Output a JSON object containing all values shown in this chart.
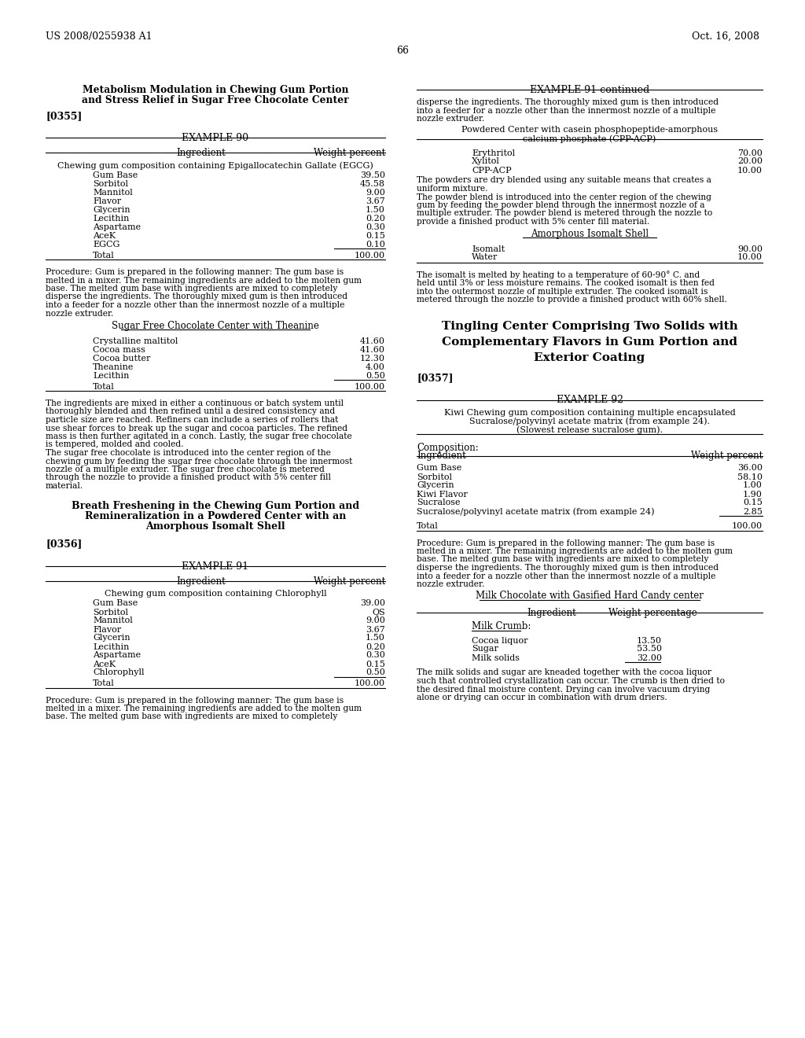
{
  "page_number": "66",
  "patent_left": "US 2008/0255938 A1",
  "patent_right": "Oct. 16, 2008",
  "background_color": "#ffffff",
  "left_column": {
    "section_title_line1": "Metabolism Modulation in Chewing Gum Portion",
    "section_title_line2": "and Stress Relief in Sugar Free Chocolate Center",
    "paragraph_tag": "[0355]",
    "example90": {
      "title": "EXAMPLE 90",
      "col1": "Ingredient",
      "col2": "Weight percent",
      "subtitle": "Chewing gum composition containing Epigallocatechin Gallate (EGCG)",
      "items": [
        [
          "Gum Base",
          "39.50"
        ],
        [
          "Sorbitol",
          "45.58"
        ],
        [
          "Mannitol",
          "9.00"
        ],
        [
          "Flavor",
          "3.67"
        ],
        [
          "Glycerin",
          "1.50"
        ],
        [
          "Lecithin",
          "0.20"
        ],
        [
          "Aspartame",
          "0.30"
        ],
        [
          "AceK",
          "0.15"
        ],
        [
          "EGCG",
          "0.10"
        ]
      ],
      "total": [
        "Total",
        "100.00"
      ],
      "procedure_lines": [
        "Procedure: Gum is prepared in the following manner: The gum base is",
        "melted in a mixer. The remaining ingredients are added to the molten gum",
        "base. The melted gum base with ingredients are mixed to completely",
        "disperse the ingredients. The thoroughly mixed gum is then introduced",
        "into a feeder for a nozzle other than the innermost nozzle of a multiple",
        "nozzle extruder."
      ],
      "subtitle2_line1": "Sugar Free Chocolate Center with Theanine",
      "items2": [
        [
          "Crystalline maltitol",
          "41.60"
        ],
        [
          "Cocoa mass",
          "41.60"
        ],
        [
          "Cocoa butter",
          "12.30"
        ],
        [
          "Theanine",
          "4.00"
        ],
        [
          "Lecithin",
          "0.50"
        ]
      ],
      "total2": [
        "Total",
        "100.00"
      ],
      "procedure2_lines": [
        "The ingredients are mixed in either a continuous or batch system until",
        "thoroughly blended and then refined until a desired consistency and",
        "particle size are reached. Refiners can include a series of rollers that",
        "use shear forces to break up the sugar and cocoa particles. The refined",
        "mass is then further agitated in a conch. Lastly, the sugar free chocolate",
        "is tempered, molded and cooled.",
        "The sugar free chocolate is introduced into the center region of the",
        "chewing gum by feeding the sugar free chocolate through the innermost",
        "nozzle of a multiple extruder. The sugar free chocolate is metered",
        "through the nozzle to provide a finished product with 5% center fill",
        "material."
      ]
    },
    "section_title2_line1": "Breath Freshening in the Chewing Gum Portion and",
    "section_title2_line2": "Remineralization in a Powdered Center with an",
    "section_title2_line3": "Amorphous Isomalt Shell",
    "paragraph_tag2": "[0356]",
    "example91": {
      "title": "EXAMPLE 91",
      "col1": "Ingredient",
      "col2": "Weight percent",
      "subtitle": "Chewing gum composition containing Chlorophyll",
      "items": [
        [
          "Gum Base",
          "39.00"
        ],
        [
          "Sorbitol",
          "QS"
        ],
        [
          "Mannitol",
          "9.00"
        ],
        [
          "Flavor",
          "3.67"
        ],
        [
          "Glycerin",
          "1.50"
        ],
        [
          "Lecithin",
          "0.20"
        ],
        [
          "Aspartame",
          "0.30"
        ],
        [
          "AceK",
          "0.15"
        ],
        [
          "Chlorophyll",
          "0.50"
        ]
      ],
      "total": [
        "Total",
        "100.00"
      ],
      "procedure_lines": [
        "Procedure: Gum is prepared in the following manner: The gum base is",
        "melted in a mixer. The remaining ingredients are added to the molten gum",
        "base. The melted gum base with ingredients are mixed to completely"
      ]
    }
  },
  "right_column": {
    "example91_continued": {
      "title": "EXAMPLE 91-continued",
      "procedure_start_lines": [
        "disperse the ingredients. The thoroughly mixed gum is then introduced",
        "into a feeder for a nozzle other than the innermost nozzle of a multiple",
        "nozzle extruder."
      ],
      "subtitle_line1": "Powdered Center with casein phosphopeptide-amorphous",
      "subtitle_line2": "calcium phosphate (CPP-ACP)",
      "items": [
        [
          "Erythritol",
          "70.00"
        ],
        [
          "Xylitol",
          "20.00"
        ],
        [
          "CPP-ACP",
          "10.00"
        ]
      ],
      "procedure2_lines": [
        "The powders are dry blended using any suitable means that creates a",
        "uniform mixture.",
        "The powder blend is introduced into the center region of the chewing",
        "gum by feeding the powder blend through the innermost nozzle of a",
        "multiple extruder. The powder blend is metered through the nozzle to",
        "provide a finished product with 5% center fill material."
      ],
      "subtitle2": "Amorphous Isomalt Shell",
      "items2": [
        [
          "Isomalt",
          "90.00"
        ],
        [
          "Water",
          "10.00"
        ]
      ],
      "procedure3_lines": [
        "The isomalt is melted by heating to a temperature of 60-90° C. and",
        "held until 3% or less moisture remains. The cooked isomalt is then fed",
        "into the outermost nozzle of multiple extruder. The cooked isomalt is",
        "metered through the nozzle to provide a finished product with 60% shell."
      ]
    },
    "section_title_line1": "Tingling Center Comprising Two Solids with",
    "section_title_line2": "Complementary Flavors in Gum Portion and",
    "section_title_line3": "Exterior Coating",
    "paragraph_tag": "[0357]",
    "example92": {
      "title": "EXAMPLE 92",
      "subtitle_lines": [
        "Kiwi Chewing gum composition containing multiple encapsulated",
        "Sucralose/polyvinyl acetate matrix (from example 24).",
        "(Slowest release sucralose gum)."
      ],
      "comp_label": "Composition:",
      "col1": "Ingredient",
      "col2": "Weight percent",
      "items": [
        [
          "Gum Base",
          "36.00"
        ],
        [
          "Sorbitol",
          "58.10"
        ],
        [
          "Glycerin",
          "1.00"
        ],
        [
          "Kiwi Flavor",
          "1.90"
        ],
        [
          "Sucralose",
          "0.15"
        ],
        [
          "Sucralose/polyvinyl acetate matrix (from example 24)",
          "2.85"
        ]
      ],
      "total": [
        "Total",
        "100.00"
      ],
      "procedure_lines": [
        "Procedure: Gum is prepared in the following manner: The gum base is",
        "melted in a mixer. The remaining ingredients are added to the molten gum",
        "base. The melted gum base with ingredients are mixed to completely",
        "disperse the ingredients. The thoroughly mixed gum is then introduced",
        "into a feeder for a nozzle other than the innermost nozzle of a multiple",
        "nozzle extruder."
      ],
      "subtitle2": "Milk Chocolate with Gasified Hard Candy center",
      "col1b": "Ingredient",
      "col2b": "Weight percentage",
      "subtitle3": "Milk Crumb:",
      "items2": [
        [
          "Cocoa liquor",
          "13.50"
        ],
        [
          "Sugar",
          "53.50"
        ],
        [
          "Milk solids",
          "32.00"
        ]
      ],
      "procedure2_lines": [
        "The milk solids and sugar are kneaded together with the cocoa liquor",
        "such that controlled crystallization can occur. The crumb is then dried to",
        "the desired final moisture content. Drying can involve vacuum drying",
        "alone or drying can occur in combination with drum driers."
      ]
    }
  }
}
